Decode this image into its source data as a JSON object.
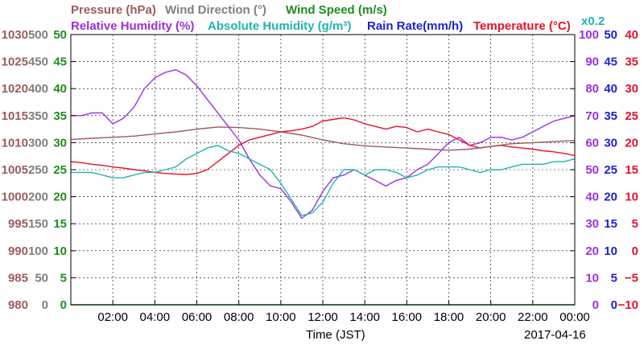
{
  "chart_data": {
    "type": "line",
    "title": "",
    "xlabel": "Time (JST)",
    "date_label": "2017-04-16",
    "x_tick_labels": [
      "02:00",
      "04:00",
      "06:00",
      "08:00",
      "10:00",
      "12:00",
      "14:00",
      "16:00",
      "18:00",
      "20:00",
      "22:00",
      "00:00"
    ],
    "x_tick_hours": [
      2,
      4,
      6,
      8,
      10,
      12,
      14,
      16,
      18,
      20,
      22,
      24
    ],
    "xlim": [
      0,
      24
    ],
    "grid": true,
    "legend_placement": "top",
    "legend_rows": [
      [
        {
          "label": "Pressure (hPa)",
          "color": "#9c5b5b"
        },
        {
          "label": "Wind Direction (°)",
          "color": "#7f7f7f"
        },
        {
          "label": "Wind Speed (m/s)",
          "color": "#1f8c1f"
        }
      ],
      [
        {
          "label": "Relative Humidity (%)",
          "color": "#9b2fe0"
        },
        {
          "label": "Absolute Humidity (g/m³)",
          "color": "#1fb5b0"
        },
        {
          "label": "Rain Rate(mm/h)",
          "color": "#1f1fd0"
        },
        {
          "label": "Temperature (°C)",
          "color": "#e8112b"
        }
      ]
    ],
    "scale_note": "x0.2",
    "axes": {
      "left": [
        {
          "name": "Pressure (hPa)",
          "color": "#9c5b5b",
          "ticks": [
            "1030",
            "1025",
            "1020",
            "1015",
            "1010",
            "1005",
            "1000",
            "995",
            "990",
            "985",
            "980"
          ]
        },
        {
          "name": "Wind Direction (°)",
          "color": "#7f7f7f",
          "ticks": [
            "500",
            "450",
            "400",
            "350",
            "300",
            "250",
            "200",
            "150",
            "100",
            "50",
            "0"
          ]
        },
        {
          "name": "Wind Speed (m/s)",
          "color": "#1f8c1f",
          "ticks": [
            "50",
            "45",
            "40",
            "35",
            "30",
            "25",
            "20",
            "15",
            "10",
            "5",
            "0"
          ]
        }
      ],
      "right": [
        {
          "name": "Relative Humidity (%)",
          "color": "#9b2fe0",
          "ticks": [
            "100",
            "90",
            "80",
            "70",
            "60",
            "50",
            "40",
            "30",
            "20",
            "10",
            "0"
          ]
        },
        {
          "name": "Rain Rate(mm/h)",
          "color": "#1f1fd0",
          "ticks": [
            "50",
            "45",
            "40",
            "35",
            "30",
            "25",
            "20",
            "15",
            "10",
            "5",
            "0"
          ]
        },
        {
          "name": "Temperature (°C)",
          "color": "#e8112b",
          "ticks": [
            "40",
            "35",
            "30",
            "25",
            "20",
            "15",
            "10",
            "5",
            "0",
            "−5",
            "−10"
          ]
        }
      ]
    },
    "ylim_fraction": [
      0,
      1
    ],
    "series": [
      {
        "name": "Relative Humidity (%)",
        "color": "#9b2fe0",
        "axis": "Relative Humidity (%)",
        "ylim": [
          0,
          100
        ],
        "x": [
          0,
          0.5,
          1,
          1.5,
          2,
          2.5,
          3,
          3.5,
          4,
          4.5,
          5,
          5.5,
          6,
          6.5,
          7,
          7.5,
          8,
          8.5,
          9,
          9.5,
          10,
          10.5,
          11,
          11.5,
          12,
          12.5,
          13,
          13.5,
          14,
          14.5,
          15,
          15.5,
          16,
          16.5,
          17,
          17.5,
          18,
          18.5,
          19,
          19.5,
          20,
          20.5,
          21,
          21.5,
          22,
          22.5,
          23,
          23.5,
          24
        ],
        "values": [
          70,
          70,
          71,
          71,
          67,
          69,
          73,
          80,
          84,
          86,
          87,
          85,
          81,
          76,
          71,
          66,
          61,
          54,
          48,
          44,
          43,
          38,
          32,
          35,
          42,
          47,
          48,
          50,
          48,
          46,
          44,
          46,
          47,
          50,
          52,
          56,
          60,
          62,
          59,
          60,
          62,
          62,
          61,
          62,
          64,
          66,
          68,
          69,
          70
        ]
      },
      {
        "name": "Temperature (°C)",
        "color": "#e8112b",
        "axis": "Temperature (°C)",
        "ylim": [
          -10,
          40
        ],
        "x": [
          0,
          0.5,
          1,
          1.5,
          2,
          2.5,
          3,
          3.5,
          4,
          4.5,
          5,
          5.5,
          6,
          6.5,
          7,
          7.5,
          8,
          8.5,
          9,
          9.5,
          10,
          10.5,
          11,
          11.5,
          12,
          12.5,
          13,
          13.5,
          14,
          14.5,
          15,
          15.5,
          16,
          16.5,
          17,
          17.5,
          18,
          18.5,
          19,
          19.5,
          20,
          20.5,
          21,
          21.5,
          22,
          22.5,
          23,
          23.5,
          24
        ],
        "values": [
          16.5,
          16.3,
          16,
          15.8,
          15.5,
          15.3,
          15,
          14.8,
          14.5,
          14.3,
          14.2,
          14.1,
          14.3,
          15,
          16.5,
          18,
          19.5,
          20.5,
          21,
          21.5,
          22,
          22.2,
          22.5,
          23,
          24,
          24.3,
          24.6,
          24.2,
          23.5,
          23,
          22.5,
          23,
          22.8,
          22,
          22.5,
          22,
          21.5,
          20.5,
          19.5,
          19,
          19.3,
          19.5,
          19.2,
          19,
          18.8,
          18.5,
          18.3,
          18,
          17.6
        ]
      },
      {
        "name": "Absolute Humidity (g/m³)",
        "color": "#1fb5b0",
        "axis": "Relative Humidity (%)",
        "scale": "x0.2",
        "ylim": [
          0,
          100
        ],
        "x": [
          0,
          0.5,
          1,
          1.5,
          2,
          2.5,
          3,
          3.5,
          4,
          4.5,
          5,
          5.5,
          6,
          6.5,
          7,
          7.5,
          8,
          8.5,
          9,
          9.5,
          10,
          10.5,
          11,
          11.5,
          12,
          12.5,
          13,
          13.5,
          14,
          14.5,
          15,
          15.5,
          16,
          16.5,
          17,
          17.5,
          18,
          18.5,
          19,
          19.5,
          20,
          20.5,
          21,
          21.5,
          22,
          22.5,
          23,
          23.5,
          24
        ],
        "values": [
          49,
          49,
          49,
          48,
          47,
          47,
          48,
          49,
          49,
          50,
          51,
          54,
          56,
          58,
          59,
          57,
          56,
          54,
          52,
          50,
          45,
          39,
          33,
          34,
          38,
          45,
          50,
          50,
          48,
          50,
          50,
          49,
          47,
          48,
          50,
          51,
          51,
          51,
          50,
          49,
          50,
          50,
          51,
          52,
          52,
          52,
          53,
          53,
          54
        ]
      },
      {
        "name": "Pressure (hPa)",
        "color": "#9c5b5b",
        "axis": "Pressure (hPa)",
        "ylim": [
          980,
          1030
        ],
        "x": [
          0,
          1,
          2,
          3,
          4,
          5,
          6,
          7,
          8,
          9,
          10,
          11,
          12,
          13,
          14,
          15,
          16,
          17,
          18,
          19,
          20,
          21,
          22,
          23,
          24
        ],
        "values": [
          1010.6,
          1010.8,
          1011.0,
          1011.2,
          1011.6,
          1012.0,
          1012.5,
          1012.9,
          1012.8,
          1012.5,
          1012.0,
          1011.4,
          1010.5,
          1009.8,
          1009.4,
          1009.2,
          1009.0,
          1008.8,
          1008.6,
          1008.8,
          1009.3,
          1009.8,
          1010.0,
          1010.2,
          1010.4
        ]
      },
      {
        "name": "Wind Speed (m/s)",
        "color": "#1f8c1f",
        "axis": "Wind Speed (m/s)",
        "ylim": [
          0,
          50
        ],
        "x": [
          0,
          24
        ],
        "values": [
          0,
          0
        ]
      }
    ]
  }
}
